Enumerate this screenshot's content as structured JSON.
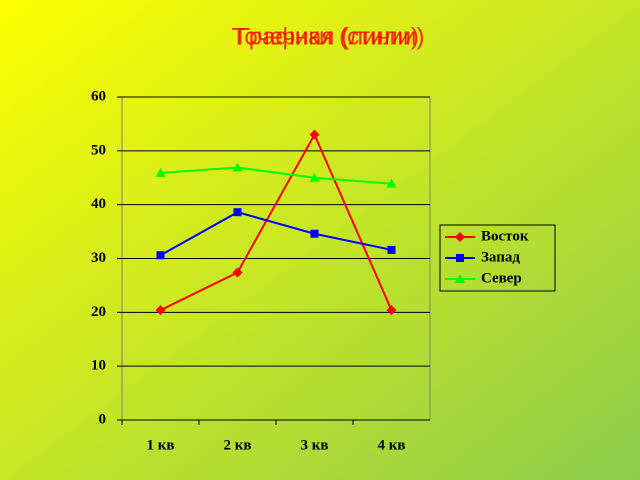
{
  "chart_data": {
    "type": "line",
    "titles": [
      "Графики (стили)",
      "Точечная (линии)"
    ],
    "categories": [
      "1 кв",
      "2 кв",
      "3 кв",
      "4 кв"
    ],
    "series": [
      {
        "name": "Восток",
        "color": "#ff0000",
        "marker": "diamond",
        "values": [
          20.4,
          27.4,
          53,
          20.4
        ]
      },
      {
        "name": "Запад",
        "color": "#0000ff",
        "marker": "square",
        "values": [
          30.6,
          38.6,
          34.6,
          31.6
        ]
      },
      {
        "name": "Север",
        "color": "#00ff00",
        "marker": "triangle",
        "values": [
          45.9,
          46.9,
          45,
          43.9
        ]
      }
    ],
    "ylim": [
      0,
      60
    ],
    "yticks": [
      0,
      10,
      20,
      30,
      40,
      50,
      60
    ],
    "grid": true,
    "legend": "right"
  }
}
